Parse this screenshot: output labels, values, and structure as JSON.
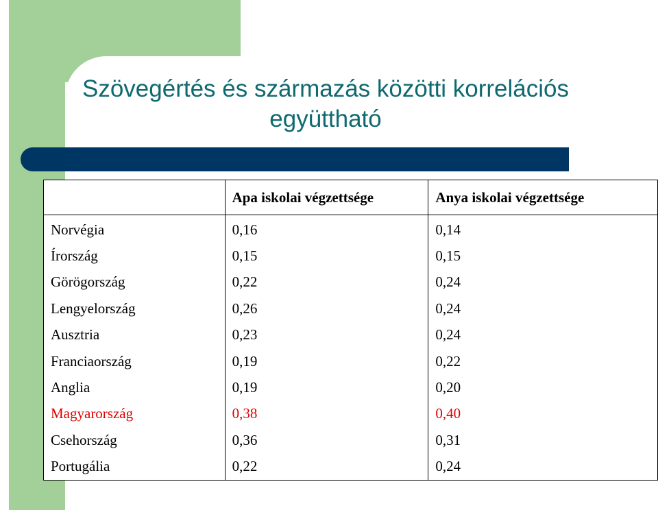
{
  "title": {
    "line1": "Szövegértés és származás közötti korrelációs",
    "line2": "együttható"
  },
  "colors": {
    "title": "#0f6a70",
    "green_accent": "#a3cf98",
    "navy_bar": "#003663",
    "highlight": "#e00000"
  },
  "table": {
    "headers": [
      "",
      "Apa iskolai végzettsége",
      "Anya iskolai végzettsége"
    ],
    "rows": [
      {
        "country": "Norvégia",
        "father": "0,16",
        "mother": "0,14",
        "highlight": false
      },
      {
        "country": "Írország",
        "father": "0,15",
        "mother": "0,15",
        "highlight": false
      },
      {
        "country": "Görögország",
        "father": "0,22",
        "mother": "0,24",
        "highlight": false
      },
      {
        "country": "Lengyelország",
        "father": "0,26",
        "mother": "0,24",
        "highlight": false
      },
      {
        "country": "Ausztria",
        "father": "0,23",
        "mother": "0,24",
        "highlight": false
      },
      {
        "country": "Franciaország",
        "father": "0,19",
        "mother": "0,22",
        "highlight": false
      },
      {
        "country": "Anglia",
        "father": "0,19",
        "mother": "0,20",
        "highlight": false
      },
      {
        "country": "Magyarország",
        "father": "0,38",
        "mother": "0,40",
        "highlight": true
      },
      {
        "country": "Csehország",
        "father": "0,36",
        "mother": "0,31",
        "highlight": false
      },
      {
        "country": "Portugália",
        "father": "0,22",
        "mother": "0,24",
        "highlight": false
      }
    ]
  }
}
